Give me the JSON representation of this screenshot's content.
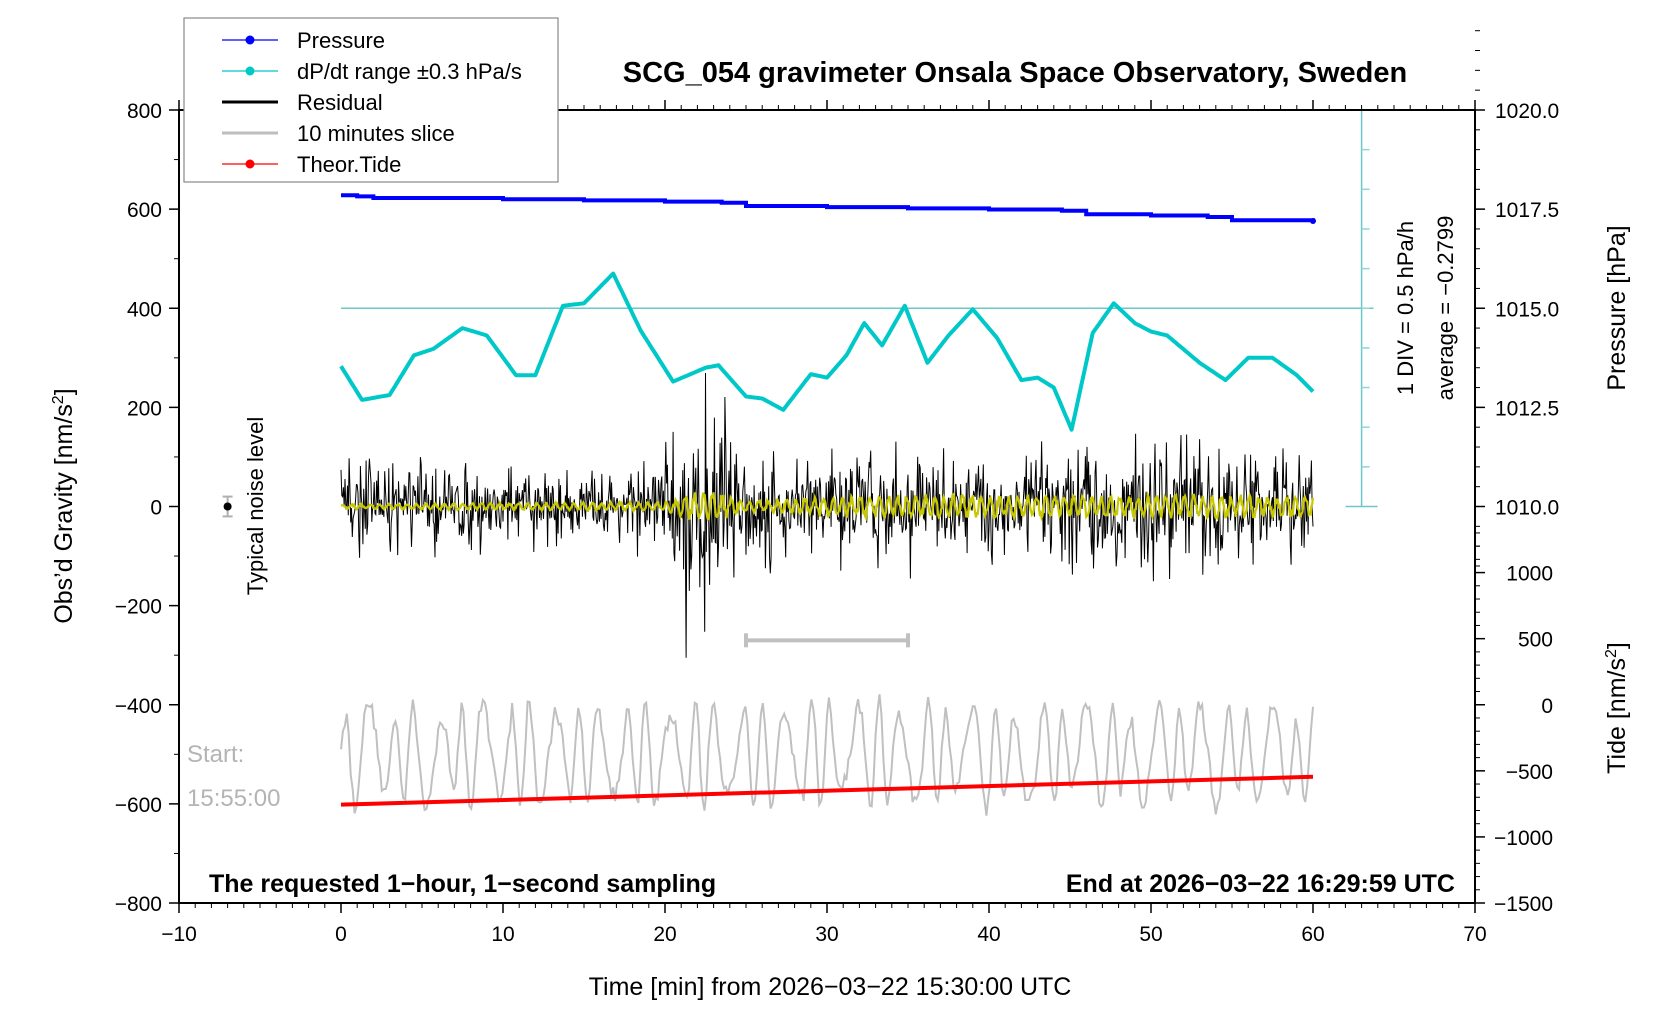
{
  "chart_data": {
    "type": "line",
    "title": "SCG_054 gravimeter Onsala Space Observatory, Sweden",
    "xlabel": "Time [min] from 2026−03−22 15:30:00 UTC",
    "ylabel_left": "Obs’d Gravity [nm/s²]",
    "ylabel_left_base": "Obs’d Gravity [nm/s",
    "ylabel_right_top": "Pressure [hPa]",
    "ylabel_right_bottom_base": "Tide [nm/s",
    "xlim": [
      -10,
      70
    ],
    "ylim_left": [
      -800,
      800
    ],
    "x_ticks": [
      -10,
      0,
      10,
      20,
      30,
      40,
      50,
      60,
      70
    ],
    "x_tick_labels": [
      "−10",
      "0",
      "10",
      "20",
      "30",
      "40",
      "50",
      "60",
      "70"
    ],
    "y_left_ticks": [
      800,
      600,
      400,
      200,
      0,
      -200,
      -400,
      -600,
      -800
    ],
    "y_left_tick_labels": [
      "800",
      "600",
      "400",
      "200",
      "0",
      "−200",
      "−400",
      "−600",
      "−800"
    ],
    "pressure_axis": {
      "ticks": [
        1020.0,
        1017.5,
        1015.0,
        1012.5,
        1010.0
      ],
      "tick_labels": [
        "1020.0",
        "1017.5",
        "1015.0",
        "1012.5",
        "1010.0"
      ],
      "gravity_equivalent_of_1015": 400,
      "hpa_per_200_nms2": 2.5
    },
    "tide_axis": {
      "ticks": [
        1000,
        500,
        0,
        -500,
        -1000,
        -1500
      ],
      "tick_labels": [
        "1000",
        "500",
        "0",
        "−500",
        "−1000",
        "−1500"
      ],
      "gravity_equivalent_of_0": -400,
      "tide_per_200_nms2": 750
    },
    "legend": {
      "position": "top-left",
      "entries": [
        {
          "label": "Pressure",
          "color": "#0000ff",
          "marker": true
        },
        {
          "label": "dP/dt range ±0.3 hPa/s",
          "color": "#00c8c8",
          "marker": true
        },
        {
          "label": "Residual",
          "color": "#000000",
          "marker": false
        },
        {
          "label": "10 minutes slice",
          "color": "#bebebe",
          "marker": false
        },
        {
          "label": "Theor.Tide",
          "color": "#ff0000",
          "marker": true
        }
      ]
    },
    "series": [
      {
        "name": "Pressure",
        "color": "#0000ff",
        "unit": "hPa",
        "x": [
          0,
          1,
          2,
          5,
          10,
          15,
          20,
          23.5,
          25,
          30,
          35,
          40,
          44.5,
          46,
          50,
          53.5,
          55,
          60
        ],
        "values": [
          1017.85,
          1017.82,
          1017.78,
          1017.78,
          1017.75,
          1017.72,
          1017.69,
          1017.66,
          1017.58,
          1017.55,
          1017.52,
          1017.49,
          1017.46,
          1017.37,
          1017.34,
          1017.3,
          1017.22,
          1017.2
        ]
      },
      {
        "name": "dP/dt range ±0.3 hPa/s",
        "color": "#00c8c8",
        "unit": "gravity-scale",
        "x": [
          0,
          1.3,
          3,
          4.5,
          5.7,
          7.5,
          9,
          10.8,
          12,
          13.7,
          15,
          16.8,
          18.5,
          20.5,
          22.5,
          23.3,
          25,
          26,
          27.3,
          29,
          30,
          31.2,
          32.3,
          33.4,
          34.8,
          36.2,
          37.5,
          39,
          40.5,
          42,
          43,
          44,
          45.1,
          46.4,
          47.7,
          49,
          50,
          51,
          53,
          54.6,
          56,
          57.5,
          59,
          60
        ],
        "values": [
          283,
          215,
          225,
          305,
          318,
          360,
          345,
          265,
          265,
          405,
          410,
          470,
          355,
          252,
          280,
          285,
          222,
          218,
          195,
          267,
          260,
          305,
          370,
          325,
          405,
          290,
          345,
          398,
          340,
          255,
          260,
          240,
          155,
          350,
          410,
          370,
          353,
          345,
          290,
          255,
          300,
          300,
          265,
          232
        ]
      },
      {
        "name": "Residual",
        "color": "#000000",
        "unit": "nm/s²",
        "envelope_x": [
          0,
          5,
          10,
          15,
          20,
          21.3,
          23.3,
          25,
          30,
          35,
          40,
          45,
          50,
          55,
          60
        ],
        "envelope_amplitude": [
          110,
          120,
          110,
          90,
          140,
          240,
          320,
          150,
          160,
          150,
          150,
          160,
          175,
          160,
          140
        ],
        "min_value": -305
      },
      {
        "name": "Residual (filtered)",
        "color": "#c8c800",
        "unit": "nm/s²",
        "envelope_x": [
          0,
          10,
          20,
          22.5,
          25,
          32,
          40,
          50,
          60
        ],
        "envelope_amplitude": [
          5,
          8,
          10,
          40,
          12,
          25,
          25,
          25,
          25
        ]
      },
      {
        "name": "10 minutes slice",
        "color": "#bebebe",
        "unit": "nm/s²",
        "center": -500,
        "amplitude": 110,
        "x_range": [
          0,
          60
        ]
      },
      {
        "name": "Theor.Tide",
        "color": "#ff0000",
        "unit": "nm/s² (tide axis)",
        "x": [
          0,
          60
        ],
        "values": [
          -756,
          -545
        ]
      }
    ],
    "annotations": {
      "noise_label": "Typical noise level",
      "noise_point": {
        "x": -7,
        "y": 0,
        "error": 20
      },
      "slice_bar": {
        "x_start": 25,
        "x_end": 35,
        "y": -270
      },
      "start_label": "Start:",
      "start_time": "15:55:00",
      "div_label": "1 DIV = 0.5 hPa/h",
      "average_label": "average = −0.2799",
      "bottom_left_note": "The requested 1−hour, 1−second sampling",
      "bottom_right_note": "End at 2026−03−22 16:29:59 UTC",
      "dpdt_reference_level": 400,
      "dpdt_scale_x": 63
    },
    "grid": false
  }
}
